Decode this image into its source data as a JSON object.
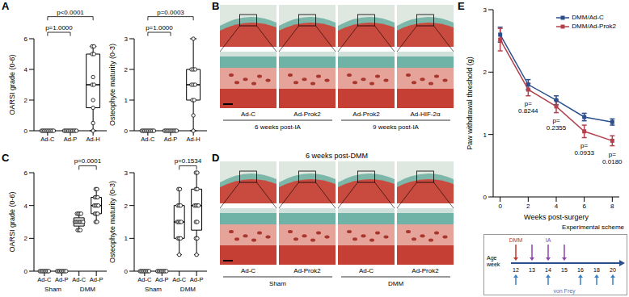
{
  "panels": [
    "A",
    "B",
    "C",
    "D",
    "E"
  ],
  "chart_data": [
    {
      "type": "box",
      "categories": [
        "Ad-C",
        "Ad-P",
        "Ad-H"
      ],
      "ylabel": "OARSI grade (0-6)",
      "ylim": [
        0,
        6
      ],
      "yticks": [
        0,
        2,
        4,
        6
      ],
      "boxes": [
        {
          "min": 0,
          "q1": 0,
          "median": 0,
          "q3": 0,
          "max": 0
        },
        {
          "min": 0,
          "q1": 0,
          "median": 0,
          "q3": 0,
          "max": 0
        },
        {
          "min": 0,
          "q1": 1.5,
          "median": 3,
          "q3": 5,
          "max": 5.5
        }
      ],
      "points": [
        [
          0,
          0,
          0,
          0,
          0,
          0,
          0,
          0,
          0,
          0
        ],
        [
          0,
          0,
          0,
          0,
          0,
          0,
          0,
          0,
          0,
          0
        ],
        [
          0,
          0.5,
          1.5,
          2,
          3,
          3,
          3.5,
          5,
          5,
          5.5,
          5.5
        ]
      ],
      "annotations": [
        {
          "text": "p=1.0000",
          "between": [
            0,
            1
          ]
        },
        {
          "text": "p<0.0001",
          "between": [
            0,
            2
          ]
        }
      ]
    },
    {
      "type": "box",
      "categories": [
        "Ad-C",
        "Ad-P",
        "Ad-H"
      ],
      "ylabel": "Osteophyte maturity (0-3)",
      "ylim": [
        0,
        3
      ],
      "yticks": [
        0,
        1,
        2,
        3
      ],
      "boxes": [
        {
          "min": 0,
          "q1": 0,
          "median": 0,
          "q3": 0,
          "max": 0
        },
        {
          "min": 0,
          "q1": 0,
          "median": 0,
          "q3": 0,
          "max": 0
        },
        {
          "min": 0,
          "q1": 1,
          "median": 1.5,
          "q3": 2,
          "max": 3
        }
      ],
      "points": [
        [
          0,
          0,
          0,
          0,
          0,
          0,
          0,
          0,
          0,
          0
        ],
        [
          0,
          0,
          0,
          0,
          0,
          0,
          0,
          0,
          0,
          0
        ],
        [
          0,
          0.5,
          1,
          1,
          1.5,
          1.5,
          1.5,
          2,
          2,
          2,
          3
        ]
      ],
      "annotations": [
        {
          "text": "p=1.0000",
          "between": [
            0,
            1
          ]
        },
        {
          "text": "p=0.0003",
          "between": [
            0,
            2
          ]
        }
      ]
    },
    {
      "type": "box",
      "categories": [
        "Ad-C",
        "Ad-P",
        "Ad-C",
        "Ad-P"
      ],
      "groups": [
        {
          "label": "Sham",
          "span": [
            0,
            1
          ]
        },
        {
          "label": "DMM",
          "span": [
            2,
            3
          ]
        }
      ],
      "ylabel": "OARSI grade (0-6)",
      "ylim": [
        0,
        6
      ],
      "yticks": [
        0,
        2,
        4,
        6
      ],
      "boxes": [
        {
          "min": 0,
          "q1": 0,
          "median": 0,
          "q3": 0,
          "max": 0
        },
        {
          "min": 0,
          "q1": 0,
          "median": 0,
          "q3": 0,
          "max": 0
        },
        {
          "min": 2.5,
          "q1": 2.75,
          "median": 3,
          "q3": 3.25,
          "max": 3.5
        },
        {
          "min": 3,
          "q1": 3.5,
          "median": 4,
          "q3": 4.5,
          "max": 5
        }
      ],
      "points": [
        [
          0,
          0,
          0,
          0,
          0,
          0,
          0,
          0
        ],
        [
          0,
          0,
          0,
          0,
          0,
          0,
          0,
          0
        ],
        [
          2.5,
          2.5,
          2.5,
          3,
          3,
          3,
          3,
          3,
          3,
          3,
          3.5,
          3.5,
          3.5,
          3.5
        ],
        [
          3,
          3,
          3.5,
          3.5,
          3.5,
          4,
          4,
          4,
          4,
          4.5,
          4.5,
          4.5,
          5,
          5
        ]
      ],
      "annotations": [
        {
          "text": "p=0.0001",
          "between": [
            2,
            3
          ]
        }
      ]
    },
    {
      "type": "box",
      "categories": [
        "Ad-C",
        "Ad-P",
        "Ad-C",
        "Ad-P"
      ],
      "groups": [
        {
          "label": "Sham",
          "span": [
            0,
            1
          ]
        },
        {
          "label": "DMM",
          "span": [
            2,
            3
          ]
        }
      ],
      "ylabel": "Osteophyte maturity (0-3)",
      "ylim": [
        0,
        3
      ],
      "yticks": [
        0,
        1,
        2,
        3
      ],
      "boxes": [
        {
          "min": 0,
          "q1": 0,
          "median": 0,
          "q3": 0,
          "max": 0
        },
        {
          "min": 0,
          "q1": 0,
          "median": 0,
          "q3": 0,
          "max": 0
        },
        {
          "min": 0.5,
          "q1": 1,
          "median": 1.5,
          "q3": 2,
          "max": 2.5
        },
        {
          "min": 0.5,
          "q1": 1.25,
          "median": 2,
          "q3": 2.5,
          "max": 3
        }
      ],
      "points": [
        [
          0,
          0,
          0,
          0,
          0,
          0,
          0,
          0
        ],
        [
          0,
          0,
          0,
          0,
          0,
          0,
          0,
          0
        ],
        [
          0.5,
          1,
          1,
          1,
          1.5,
          1.5,
          1.5,
          1.5,
          2,
          2,
          2,
          2.5,
          2.5
        ],
        [
          0.5,
          1,
          1,
          1.5,
          1.5,
          2,
          2,
          2,
          2,
          2.5,
          2.5,
          3,
          3
        ]
      ],
      "annotations": [
        {
          "text": "p=0.1534",
          "between": [
            2,
            3
          ]
        }
      ]
    },
    {
      "type": "line",
      "xlabel": "Weeks post-surgery",
      "ylabel": "Paw withdrawal threshold (g)",
      "x": [
        0,
        2,
        4,
        6,
        8
      ],
      "xlim": [
        -0.5,
        8.5
      ],
      "xticks": [
        0,
        2,
        4,
        6,
        8
      ],
      "ylim": [
        0,
        3
      ],
      "yticks": [
        0,
        1,
        2,
        3
      ],
      "legend": "top-right",
      "series": [
        {
          "name": "DMM/Ad-C",
          "color": "#2c4f8c",
          "marker": "square",
          "values": [
            2.6,
            1.8,
            1.55,
            1.28,
            1.2
          ],
          "errors": [
            0.12,
            0.08,
            0.07,
            0.06,
            0.05
          ]
        },
        {
          "name": "DMM/Ad-Prok2",
          "color": "#b3424e",
          "marker": "square",
          "values": [
            2.52,
            1.72,
            1.45,
            1.05,
            0.9
          ],
          "errors": [
            0.18,
            0.1,
            0.1,
            0.1,
            0.08
          ]
        }
      ],
      "annotations": [
        {
          "x": 2,
          "text": "p=\n0.8244"
        },
        {
          "x": 4,
          "text": "p=\n0.2355"
        },
        {
          "x": 6,
          "text": "p=\n0.0933"
        },
        {
          "x": 8,
          "text": "p=\n0.0180"
        }
      ]
    }
  ],
  "histology": [
    {
      "labels": [
        "Ad-C",
        "Ad-Prok2",
        "Ad-Prok2",
        "Ad-HIF-2α"
      ],
      "groups": [
        {
          "label": "6 weeks post-IA",
          "span": [
            0,
            1
          ]
        },
        {
          "label": "9 weeks post-IA",
          "span": [
            2,
            3
          ]
        }
      ]
    },
    {
      "title": "6 weeks post-DMM",
      "labels": [
        "Ad-C",
        "Ad-Prok2",
        "Ad-C",
        "Ad-Prok2"
      ],
      "groups": [
        {
          "label": "Sham",
          "span": [
            0,
            1
          ]
        },
        {
          "label": "DMM",
          "span": [
            2,
            3
          ]
        }
      ]
    }
  ],
  "scheme": {
    "title": "Experimental scheme",
    "axis_label": "Age\nweek",
    "ticks": [
      12,
      13,
      14,
      15,
      16,
      18,
      20
    ],
    "events": [
      {
        "label": "DMM",
        "weeks": [
          12
        ],
        "color": "#c0392b"
      },
      {
        "label": "IA",
        "weeks": [
          13,
          14,
          15
        ],
        "color": "#8e44ad"
      },
      {
        "label": "von Frey",
        "weeks": [
          12,
          14,
          16,
          18,
          20
        ],
        "color": "#3b82c4"
      }
    ]
  }
}
